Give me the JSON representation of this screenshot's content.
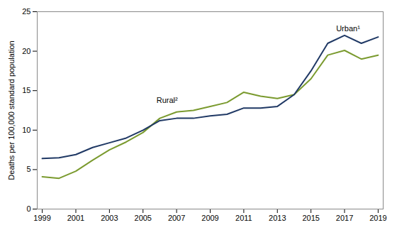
{
  "chart_data": {
    "type": "line",
    "ylabel": "Deaths per 100,000 standard population",
    "x": [
      1999,
      2000,
      2001,
      2002,
      2003,
      2004,
      2005,
      2006,
      2007,
      2008,
      2009,
      2010,
      2011,
      2012,
      2013,
      2014,
      2015,
      2016,
      2017,
      2018,
      2019
    ],
    "series": [
      {
        "name": "Urban¹",
        "color": "#1f3864",
        "values": [
          6.4,
          6.5,
          6.9,
          7.8,
          8.4,
          9.0,
          10.0,
          11.2,
          11.5,
          11.5,
          11.8,
          12.0,
          12.8,
          12.8,
          13.0,
          14.5,
          17.5,
          21.0,
          22.0,
          21.0,
          21.8
        ]
      },
      {
        "name": "Rural²",
        "color": "#7a9a2e",
        "values": [
          4.1,
          3.9,
          4.8,
          6.2,
          7.5,
          8.5,
          9.7,
          11.5,
          12.3,
          12.5,
          13.0,
          13.5,
          14.8,
          14.3,
          14.0,
          14.5,
          16.5,
          19.5,
          20.1,
          19.0,
          19.5
        ]
      }
    ],
    "annotations": [
      {
        "text": "Urban¹",
        "x": 2016.5,
        "y": 22.5
      },
      {
        "text": "Rural²",
        "x": 2005.8,
        "y": 13.4
      }
    ],
    "xlim": [
      1998.7,
      2019.3
    ],
    "xticks": [
      1999,
      2001,
      2003,
      2005,
      2007,
      2009,
      2011,
      2013,
      2015,
      2017,
      2019
    ],
    "ylim": [
      0,
      25
    ],
    "yticks": [
      0,
      5,
      10,
      15,
      20,
      25
    ],
    "grid": false,
    "legend": null
  }
}
